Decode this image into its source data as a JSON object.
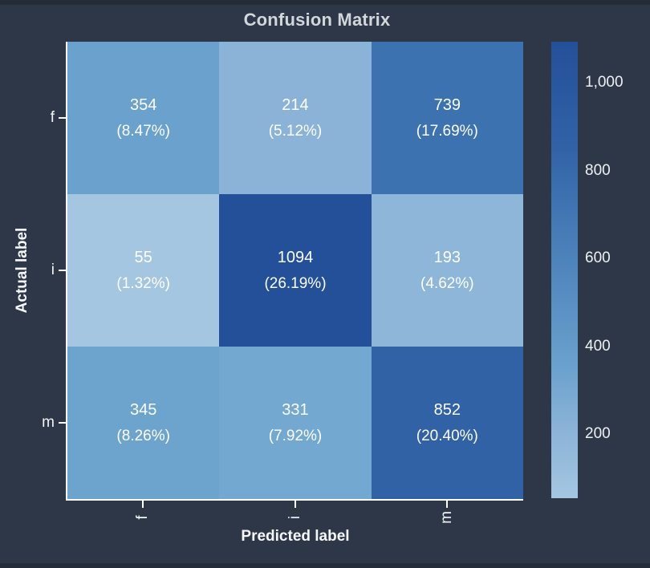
{
  "window": {
    "background_color": "#2d3747",
    "frame_color": "#242c38"
  },
  "chart_data": {
    "type": "heatmap",
    "title": "Confusion Matrix",
    "xlabel": "Predicted label",
    "ylabel": "Actual label",
    "x_categories": [
      "f",
      "i",
      "m"
    ],
    "y_categories": [
      "f",
      "i",
      "m"
    ],
    "values": [
      [
        354,
        214,
        739
      ],
      [
        55,
        1094,
        193
      ],
      [
        345,
        331,
        852
      ]
    ],
    "cells": [
      {
        "row": "f",
        "col": "f",
        "value": "354",
        "percent": "(8.47%)",
        "color": "#6aa1cd"
      },
      {
        "row": "f",
        "col": "i",
        "value": "214",
        "percent": "(5.12%)",
        "color": "#8ab3d7"
      },
      {
        "row": "f",
        "col": "m",
        "value": "739",
        "percent": "(17.69%)",
        "color": "#3d72b1"
      },
      {
        "row": "i",
        "col": "f",
        "value": "55",
        "percent": "(1.32%)",
        "color": "#a4c6e1"
      },
      {
        "row": "i",
        "col": "i",
        "value": "1094",
        "percent": "(26.19%)",
        "color": "#24509a"
      },
      {
        "row": "i",
        "col": "m",
        "value": "193",
        "percent": "(4.62%)",
        "color": "#8db6d8"
      },
      {
        "row": "m",
        "col": "f",
        "value": "345",
        "percent": "(8.26%)",
        "color": "#6da4ce"
      },
      {
        "row": "m",
        "col": "i",
        "value": "331",
        "percent": "(7.92%)",
        "color": "#73a8d1"
      },
      {
        "row": "m",
        "col": "m",
        "value": "852",
        "percent": "(20.40%)",
        "color": "#3162a6"
      }
    ],
    "colorbar": {
      "tick_labels": [
        "1,000",
        "800",
        "600",
        "400",
        "200"
      ],
      "gradient_stops": [
        "#24509a 0%",
        "#3162a6 23.3%",
        "#3d72b1 34.2%",
        "#6aa1cd 71.2%",
        "#8ab3d7 84.7%",
        "#a4c6e1 100%"
      ]
    },
    "text_color": "#ffffff",
    "spine_color": "#ffffff",
    "legend_position": "right-colorbar",
    "grid": false
  }
}
